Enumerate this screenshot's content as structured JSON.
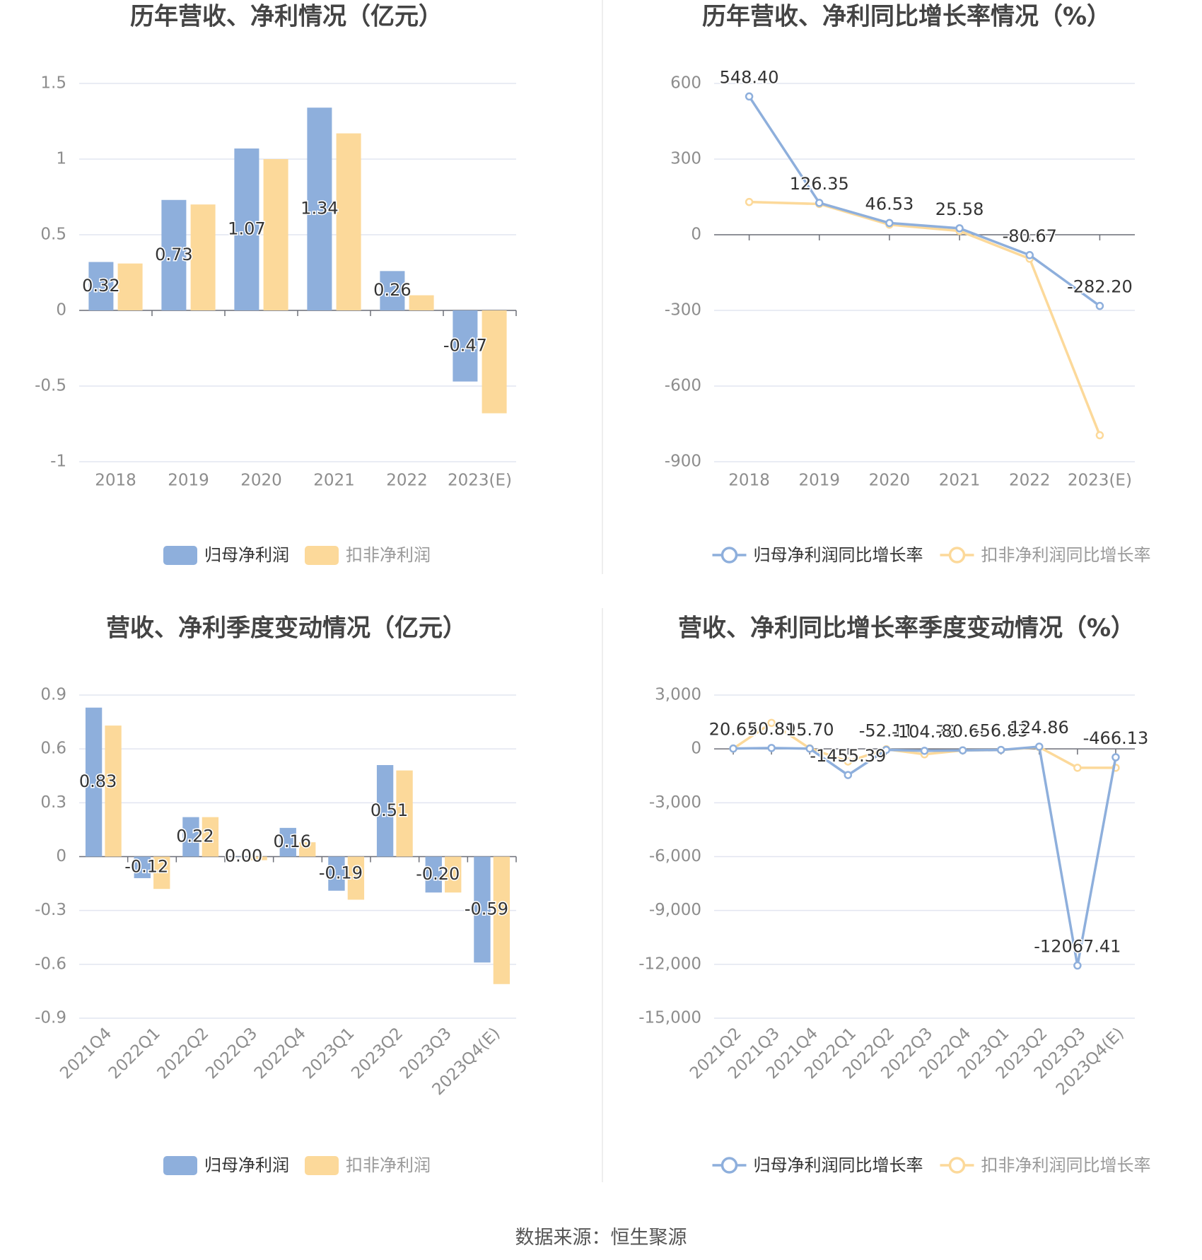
{
  "colors": {
    "parent": "#8eafdc",
    "deducted": "#fcd99a",
    "grid": "#e2e5f0",
    "axis": "#6e7079",
    "tick_text": "#8d8d8d",
    "title": "#444444",
    "label": "#333333",
    "divider": "#eeeeee"
  },
  "source": "数据来源：恒生聚源",
  "chart_data": [
    {
      "type": "bar",
      "title": "历年营收、净利情况（亿元）",
      "categories": [
        "2018",
        "2019",
        "2020",
        "2021",
        "2022",
        "2023(E)"
      ],
      "series": [
        {
          "name": "归母净利润",
          "values": [
            0.32,
            0.73,
            1.07,
            1.34,
            0.26,
            -0.47
          ],
          "labels": [
            "0.32",
            "0.73",
            "1.07",
            "1.34",
            "0.26",
            "-0.47"
          ]
        },
        {
          "name": "扣非净利润",
          "values": [
            0.31,
            0.7,
            1.0,
            1.17,
            0.1,
            -0.68
          ]
        }
      ],
      "yticks": [
        "1.5",
        "1",
        "0.5",
        "0",
        "-0.5",
        "-1"
      ],
      "ylim": [
        -1,
        1.5
      ],
      "legend": "bottom"
    },
    {
      "type": "line",
      "title": "历年营收、净利同比增长率情况（%）",
      "categories": [
        "2018",
        "2019",
        "2020",
        "2021",
        "2022",
        "2023(E)"
      ],
      "series": [
        {
          "name": "归母净利润同比增长率",
          "values": [
            548.4,
            126.35,
            46.53,
            25.58,
            -80.67,
            -282.2
          ],
          "labels": [
            "548.40",
            "126.35",
            "46.53",
            "25.58",
            "-80.67",
            "-282.20"
          ]
        },
        {
          "name": "扣非净利润同比增长率",
          "values": [
            130,
            122,
            40,
            15,
            -95,
            -795
          ]
        }
      ],
      "yticks": [
        "600",
        "300",
        "0",
        "-300",
        "-600",
        "-900"
      ],
      "ylim": [
        -900,
        600
      ],
      "legend": "bottom"
    },
    {
      "type": "bar",
      "title": "营收、净利季度变动情况（亿元）",
      "categories": [
        "2021Q4",
        "2022Q1",
        "2022Q2",
        "2022Q3",
        "2022Q4",
        "2023Q1",
        "2023Q2",
        "2023Q3",
        "2023Q4(E)"
      ],
      "series": [
        {
          "name": "归母净利润",
          "values": [
            0.83,
            -0.12,
            0.22,
            0.0,
            0.16,
            -0.19,
            0.51,
            -0.2,
            -0.59
          ],
          "labels": [
            "0.83",
            "-0.12",
            "0.22",
            "0.00",
            "0.16",
            "-0.19",
            "0.51",
            "-0.20",
            "-0.59"
          ]
        },
        {
          "name": "扣非净利润",
          "values": [
            0.73,
            -0.18,
            0.22,
            -0.02,
            0.08,
            -0.24,
            0.48,
            -0.2,
            -0.71
          ]
        }
      ],
      "yticks": [
        "0.9",
        "0.6",
        "0.3",
        "0",
        "-0.3",
        "-0.6",
        "-0.9"
      ],
      "ylim": [
        -0.9,
        0.9
      ],
      "legend": "bottom"
    },
    {
      "type": "line",
      "title": "营收、净利同比增长率季度变动情况（%）",
      "categories": [
        "2021Q2",
        "2021Q3",
        "2021Q4",
        "2022Q1",
        "2022Q2",
        "2022Q3",
        "2022Q4",
        "2023Q1",
        "2023Q2",
        "2023Q3",
        "2023Q4(E)"
      ],
      "series": [
        {
          "name": "归母净利润同比增长率",
          "values": [
            20.62,
            50.89,
            15.7,
            -1455.39,
            -52.11,
            -104.78,
            -80.66,
            -56.83,
            124.86,
            -12067.41,
            -466.13
          ],
          "labels": [
            "20.62",
            "50.89",
            "15.70",
            "-1455.39",
            "-52.11",
            "-104.78",
            "-80.66",
            "-56.83",
            "124.86",
            "-12067.41",
            "-466.13"
          ]
        },
        {
          "name": "扣非净利润同比增长率",
          "values": [
            20,
            1450,
            30,
            -700,
            -20,
            -300,
            -80,
            -60,
            100,
            -1050,
            -1050
          ]
        }
      ],
      "yticks": [
        "3,000",
        "0",
        "-3,000",
        "-6,000",
        "-9,000",
        "-12,000",
        "-15,000"
      ],
      "ylim": [
        -15000,
        3000
      ],
      "legend": "bottom"
    }
  ]
}
